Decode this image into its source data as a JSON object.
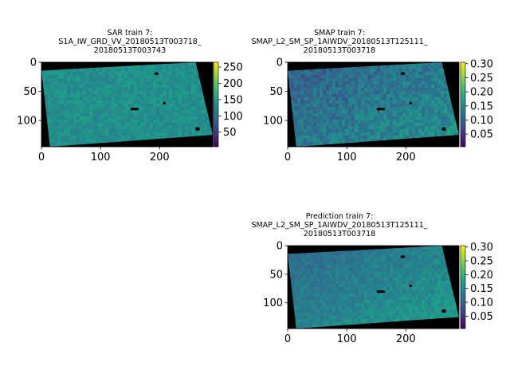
{
  "chart_data": [
    {
      "type": "heatmap",
      "title_lines": [
        "SAR train 7:",
        "S1A_IW_GRD_VV_20180513T003718_",
        "20180513T003743"
      ],
      "x_ticks": [
        0,
        100,
        200
      ],
      "y_ticks": [
        0,
        50,
        100
      ],
      "xlim": [
        0,
        290
      ],
      "ylim": [
        145,
        0
      ],
      "colorbar": {
        "min": 5,
        "max": 265,
        "ticks": [
          50,
          100,
          150,
          200,
          250
        ],
        "tick_labels": [
          "50",
          "100",
          "150",
          "200",
          "250"
        ],
        "colormap": "viridis"
      },
      "base_value": 0.5,
      "variation": 0.06
    },
    {
      "type": "heatmap",
      "title_lines": [
        "SMAP train 7:",
        "SMAP_L2_SM_SP_1AIWDV_20180513T125111_",
        "20180513T003718"
      ],
      "x_ticks": [
        0,
        100,
        200
      ],
      "y_ticks": [
        0,
        50,
        100
      ],
      "xlim": [
        0,
        290
      ],
      "ylim": [
        145,
        0
      ],
      "colorbar": {
        "min": 0.005,
        "max": 0.305,
        "ticks": [
          0.05,
          0.1,
          0.15,
          0.2,
          0.25,
          0.3
        ],
        "tick_labels": [
          "0.05",
          "0.10",
          "0.15",
          "0.20",
          "0.25",
          "0.30"
        ],
        "colormap": "viridis"
      },
      "base_value": 0.38,
      "variation": 0.1
    },
    {
      "type": "heatmap",
      "title_lines": [
        "Prediction train 7:",
        "SMAP_L2_SM_SP_1AIWDV_20180513T125111_",
        "20180513T003718"
      ],
      "x_ticks": [
        0,
        100,
        200
      ],
      "y_ticks": [
        0,
        50,
        100
      ],
      "xlim": [
        0,
        290
      ],
      "ylim": [
        145,
        0
      ],
      "colorbar": {
        "min": 0.005,
        "max": 0.305,
        "ticks": [
          0.05,
          0.1,
          0.15,
          0.2,
          0.25,
          0.3
        ],
        "tick_labels": [
          "0.05",
          "0.10",
          "0.15",
          "0.20",
          "0.25",
          "0.30"
        ],
        "colormap": "viridis"
      },
      "base_value": 0.42,
      "variation": 0.06
    }
  ],
  "colors": {
    "nodata": "#000000",
    "background": "#ffffff"
  }
}
